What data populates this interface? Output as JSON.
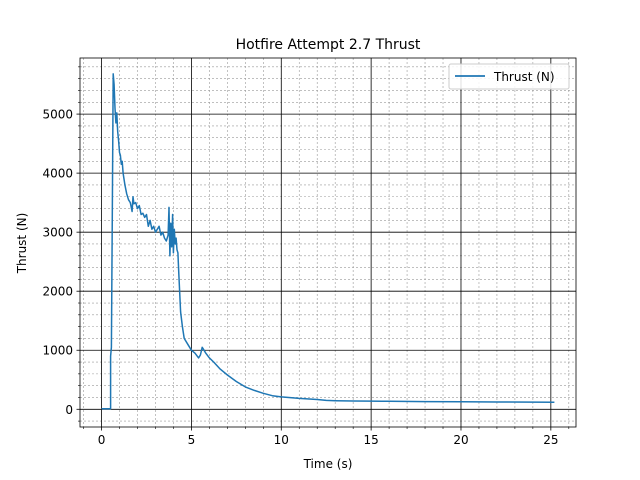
{
  "chart_data": {
    "type": "line",
    "title": "Hotfire Attempt 2.7 Thrust",
    "xlabel": "Time (s)",
    "ylabel": "Thrust (N)",
    "xlim": [
      -1.2,
      26.4
    ],
    "ylim": [
      -300,
      5950
    ],
    "x_ticks": [
      0,
      5,
      10,
      15,
      20,
      25
    ],
    "x_tick_labels": [
      "0",
      "5",
      "10",
      "15",
      "20",
      "25"
    ],
    "y_ticks": [
      0,
      1000,
      2000,
      3000,
      4000,
      5000
    ],
    "y_tick_labels": [
      "0",
      "1000",
      "2000",
      "3000",
      "4000",
      "5000"
    ],
    "grid": "major solid black, minor dashed gray",
    "legend_position": "upper right",
    "series": [
      {
        "name": "Thrust (N)",
        "color": "#1f77b4",
        "x": [
          0,
          0.5,
          0.5,
          0.55,
          0.6,
          0.65,
          0.7,
          0.75,
          0.8,
          0.85,
          0.9,
          0.95,
          1.0,
          1.05,
          1.1,
          1.15,
          1.2,
          1.3,
          1.4,
          1.5,
          1.6,
          1.7,
          1.75,
          1.8,
          1.9,
          2.0,
          2.1,
          2.2,
          2.3,
          2.4,
          2.5,
          2.6,
          2.7,
          2.8,
          2.9,
          3.0,
          3.1,
          3.2,
          3.3,
          3.4,
          3.5,
          3.6,
          3.7,
          3.75,
          3.8,
          3.85,
          3.9,
          3.95,
          4.0,
          4.05,
          4.1,
          4.15,
          4.2,
          4.25,
          4.3,
          4.4,
          4.5,
          4.6,
          4.8,
          5.0,
          5.2,
          5.4,
          5.5,
          5.6,
          5.7,
          5.8,
          6.0,
          6.3,
          6.6,
          7.0,
          7.5,
          8.0,
          8.5,
          9.0,
          9.5,
          10.0,
          11.0,
          12.0,
          12.5,
          13.0,
          14.0,
          15.0,
          16.0,
          18.0,
          20.0,
          22.0,
          24.0,
          25.2
        ],
        "values": [
          10,
          10,
          900,
          1050,
          3300,
          5680,
          5500,
          5100,
          4850,
          5020,
          4700,
          4550,
          4350,
          4300,
          4150,
          4200,
          4000,
          3800,
          3650,
          3550,
          3500,
          3350,
          3600,
          3480,
          3500,
          3400,
          3450,
          3300,
          3320,
          3250,
          3300,
          3100,
          3200,
          3050,
          3100,
          3000,
          3050,
          3100,
          2950,
          3000,
          2900,
          2850,
          2950,
          3420,
          2600,
          3150,
          2750,
          3300,
          2650,
          3050,
          2800,
          2900,
          2700,
          2650,
          2300,
          1650,
          1400,
          1200,
          1100,
          1000,
          950,
          870,
          920,
          1050,
          1000,
          950,
          870,
          780,
          680,
          580,
          470,
          380,
          320,
          270,
          230,
          210,
          185,
          165,
          150,
          145,
          140,
          138,
          135,
          130,
          127,
          124,
          121,
          120
        ]
      }
    ]
  }
}
